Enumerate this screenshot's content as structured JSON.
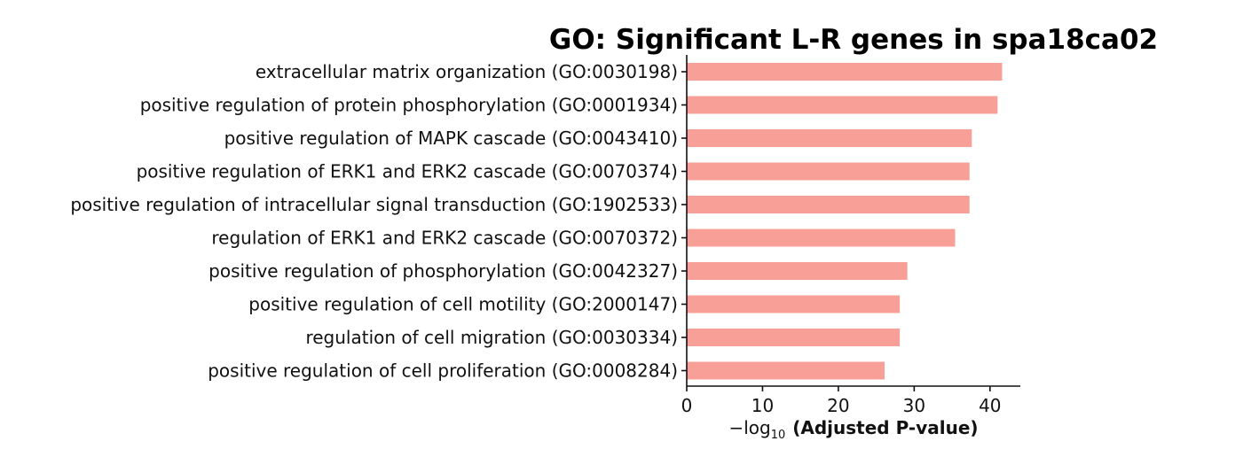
{
  "chart_data": {
    "type": "bar",
    "orientation": "horizontal",
    "title": "GO: Significant L-R genes in spa18ca02",
    "xlabel": {
      "prefix": "−log",
      "subscript": "10",
      "main": "(Adjusted P-value)"
    },
    "xlim": [
      0,
      44
    ],
    "xticks": [
      "0",
      "10",
      "20",
      "30",
      "40"
    ],
    "xtick_values": [
      0,
      10,
      20,
      30,
      40
    ],
    "grid": false,
    "bar_color": "#f8a097",
    "categories": [
      "extracellular matrix organization (GO:0030198)",
      "positive regulation of protein phosphorylation (GO:0001934)",
      "positive regulation of MAPK cascade (GO:0043410)",
      "positive regulation of ERK1 and ERK2 cascade (GO:0070374)",
      "positive regulation of intracellular signal transduction (GO:1902533)",
      "regulation of ERK1 and ERK2 cascade (GO:0070372)",
      "positive regulation of phosphorylation (GO:0042327)",
      "positive regulation of cell motility (GO:2000147)",
      "regulation of cell migration (GO:0030334)",
      "positive regulation of cell proliferation (GO:0008284)"
    ],
    "values": [
      41.6,
      41.0,
      37.6,
      37.3,
      37.3,
      35.4,
      29.1,
      28.1,
      28.1,
      26.1
    ]
  }
}
